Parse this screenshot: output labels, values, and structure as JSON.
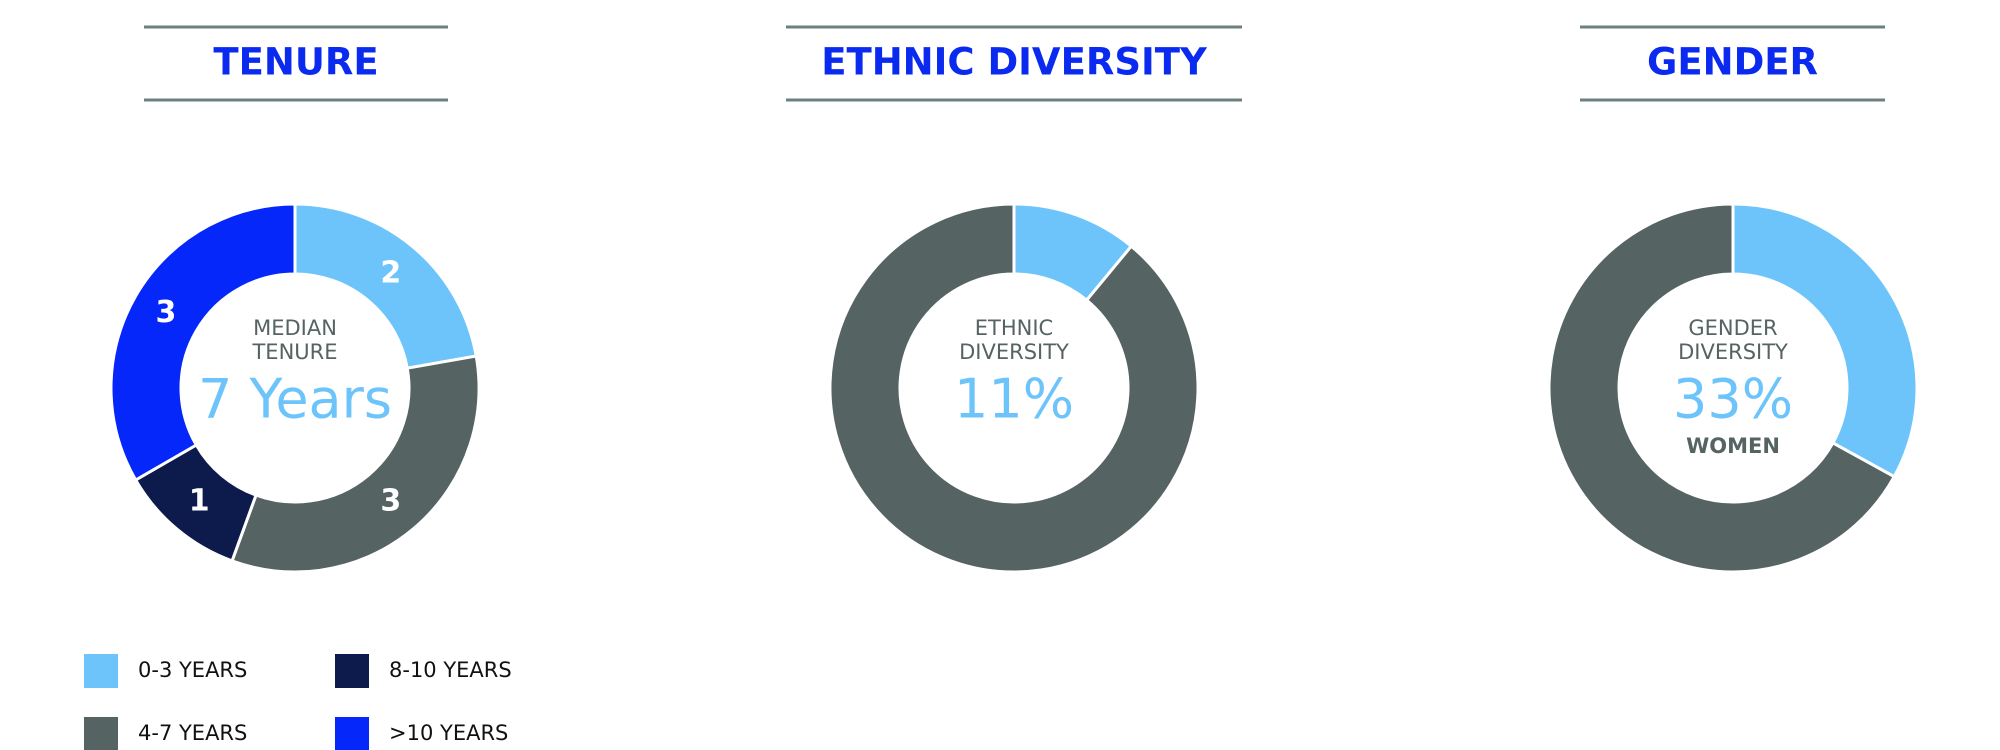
{
  "chart_data": [
    {
      "type": "donut",
      "title": "TENURE",
      "categories": [
        "0-3 YEARS",
        "4-7 YEARS",
        "8-10 YEARS",
        ">10 YEARS"
      ],
      "values": [
        2,
        3,
        1,
        3
      ],
      "colors": [
        "#6cc4fb",
        "#566363",
        "#0c1a4c",
        "#0527fa"
      ],
      "data_labels": true,
      "center_text": [
        "MEDIAN",
        "TENURE"
      ],
      "center_value": "7 Years",
      "legend": "bottom-left"
    },
    {
      "type": "donut",
      "title": "ETHNIC DIVERSITY",
      "values": [
        11,
        89
      ],
      "value_labels": [
        "11%",
        null
      ],
      "colors": [
        "#6cc4fb",
        "#566363"
      ],
      "center_text": [
        "ETHNIC",
        "DIVERSITY"
      ]
    },
    {
      "type": "donut",
      "title": "GENDER",
      "values": [
        33,
        67
      ],
      "value_labels": [
        "33%",
        null
      ],
      "colors": [
        "#6cc4fb",
        "#566363"
      ],
      "center_text": [
        "GENDER",
        "DIVERSITY"
      ],
      "center_footer": "WOMEN"
    }
  ]
}
